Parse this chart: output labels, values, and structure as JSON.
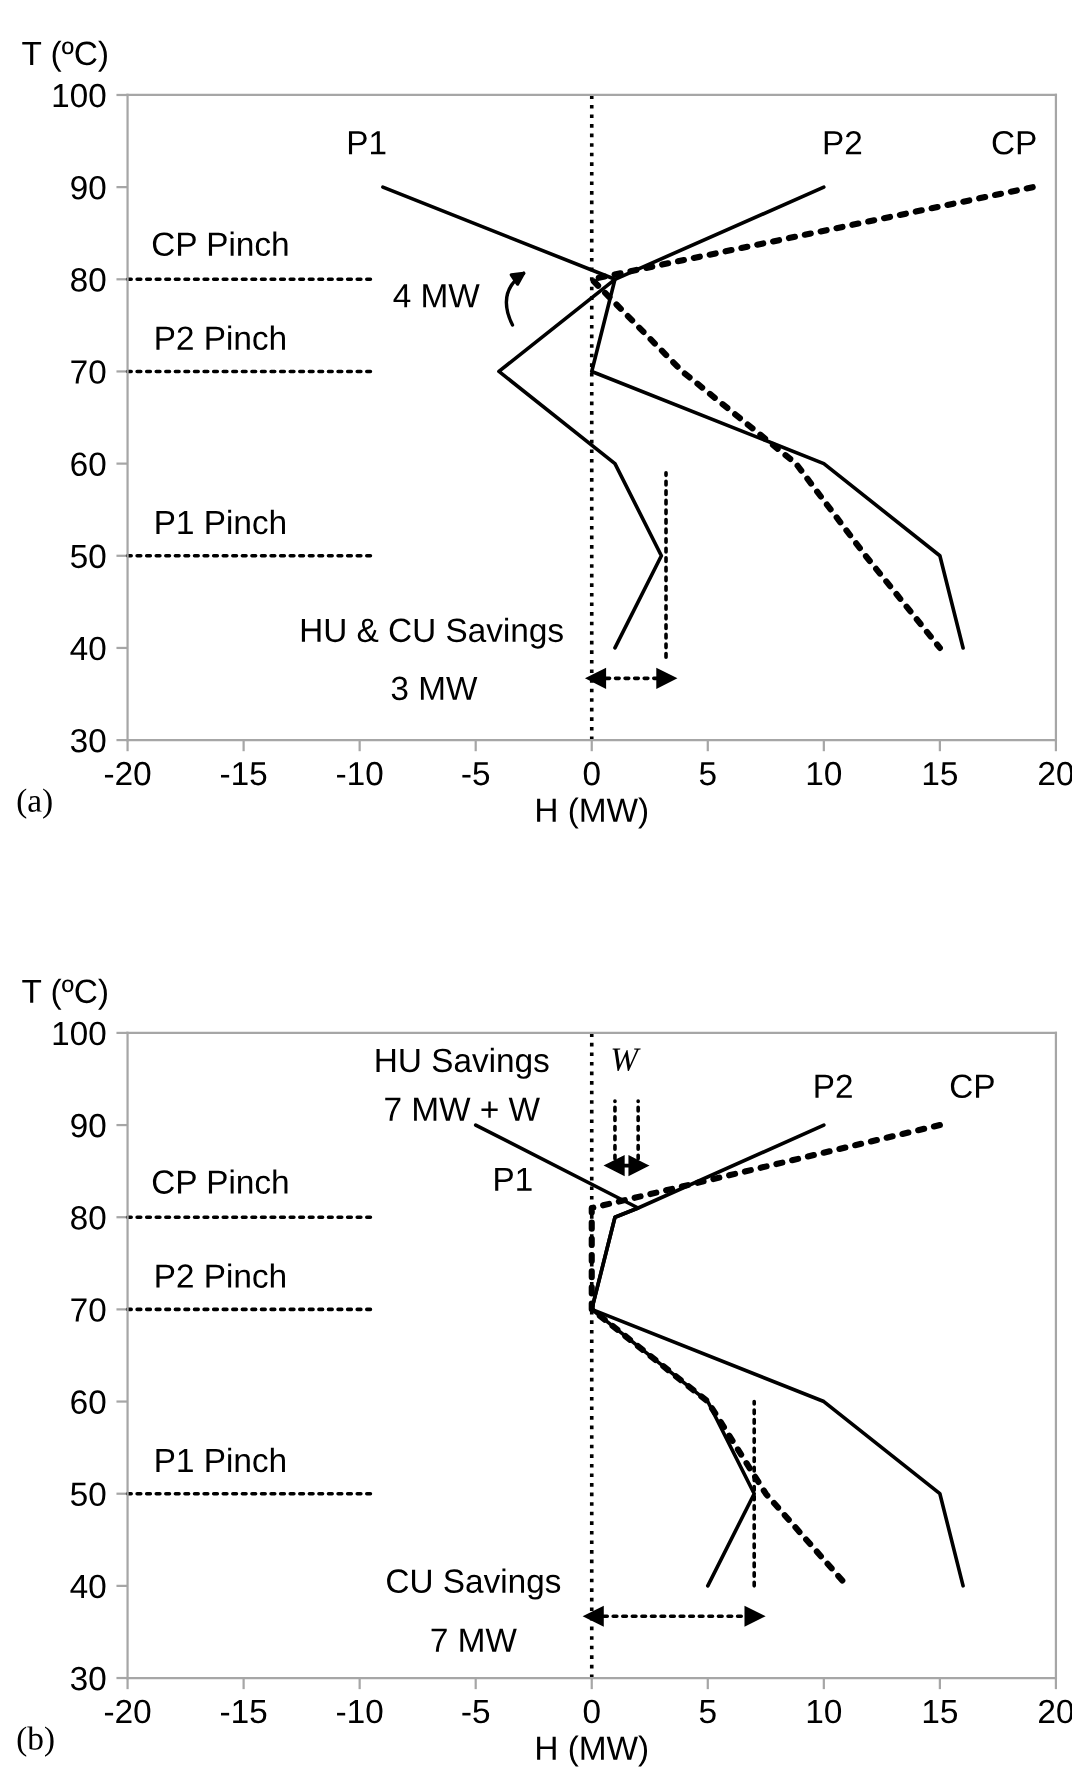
{
  "chart_data": [
    {
      "type": "line",
      "xlabel": "H (MW)",
      "ylabel": "T (ºC)",
      "xlim": [
        -20,
        20
      ],
      "ylim": [
        30,
        100
      ],
      "xticks": [
        -20,
        -15,
        -10,
        -5,
        0,
        5,
        10,
        15,
        20
      ],
      "yticks": [
        30,
        40,
        50,
        60,
        70,
        80,
        90,
        100
      ],
      "grid": false,
      "legend": false,
      "ref_lines": [
        {
          "axis": "x",
          "value": 0,
          "color": "#000000",
          "line_style": "dotted"
        }
      ],
      "series": [
        {
          "name": "P1",
          "color": "#000000",
          "line_style": "solid",
          "x": [
            -9,
            1,
            -4,
            1,
            3,
            1
          ],
          "values": [
            90,
            80,
            70,
            60,
            50,
            40
          ]
        },
        {
          "name": "P2",
          "color": "#000000",
          "line_style": "solid",
          "x": [
            10,
            1,
            0,
            10,
            15,
            16
          ],
          "values": [
            90,
            80,
            70,
            60,
            50,
            40
          ]
        },
        {
          "name": "CP",
          "color": "#000000",
          "line_style": "dotted",
          "x": [
            19,
            0,
            3.9,
            8.8,
            11.8,
            15
          ],
          "values": [
            90,
            80,
            70,
            60,
            50,
            40
          ]
        },
        {
          "color": "#000000",
          "line_style": "dotted",
          "x": [
            -20,
            -9.5
          ],
          "values": [
            80,
            80
          ]
        },
        {
          "color": "#000000",
          "line_style": "dotted",
          "x": [
            -20,
            -9.5
          ],
          "values": [
            70,
            70
          ]
        },
        {
          "color": "#000000",
          "line_style": "dotted",
          "x": [
            -20,
            -9.5
          ],
          "values": [
            50,
            50
          ]
        },
        {
          "color": "#000000",
          "line_style": "dotted",
          "x": [
            3.2,
            3.2
          ],
          "values": [
            39,
            59
          ]
        },
        {
          "color": "#000000",
          "line_style": "dotted",
          "marker": "triangle",
          "x": [
            0.2,
            3.2
          ],
          "values": [
            36.7,
            36.7
          ]
        }
      ],
      "annotations": [
        "CP Pinch",
        "P2 Pinch",
        "P1 Pinch",
        "4 MW",
        "HU & CU Savings",
        "3 MW",
        "(a)"
      ]
    },
    {
      "type": "line",
      "xlabel": "H (MW)",
      "ylabel": "T (ºC)",
      "xlim": [
        -20,
        20
      ],
      "ylim": [
        30,
        100
      ],
      "xticks": [
        -20,
        -15,
        -10,
        -5,
        0,
        5,
        10,
        15,
        20
      ],
      "yticks": [
        30,
        40,
        50,
        60,
        70,
        80,
        90,
        100
      ],
      "grid": false,
      "legend": false,
      "ref_lines": [
        {
          "axis": "x",
          "value": 0,
          "color": "#000000",
          "line_style": "dotted"
        }
      ],
      "series": [
        {
          "name": "P1",
          "color": "#000000",
          "line_style": "solid",
          "x": [
            -5,
            2,
            1,
            0,
            5,
            7,
            5
          ],
          "values": [
            90,
            81,
            80,
            70,
            60,
            50,
            40
          ]
        },
        {
          "name": "P2",
          "color": "#000000",
          "line_style": "solid",
          "x": [
            10,
            2,
            1,
            0,
            10,
            15,
            16
          ],
          "values": [
            90,
            81,
            80,
            70,
            60,
            50,
            40
          ]
        },
        {
          "name": "CP",
          "color": "#000000",
          "line_style": "dotted",
          "x": [
            15,
            0,
            0,
            0,
            5,
            7.5,
            11
          ],
          "values": [
            90,
            81,
            80,
            70,
            60,
            50,
            40
          ]
        },
        {
          "color": "#000000",
          "line_style": "dotted",
          "x": [
            -20,
            -9.3
          ],
          "values": [
            80,
            80
          ]
        },
        {
          "color": "#000000",
          "line_style": "dotted",
          "x": [
            -20,
            -9.3
          ],
          "values": [
            70,
            70
          ]
        },
        {
          "color": "#000000",
          "line_style": "dotted",
          "x": [
            -20,
            -9.3
          ],
          "values": [
            50,
            50
          ]
        },
        {
          "color": "#000000",
          "line_style": "dotted",
          "x": [
            7,
            7
          ],
          "values": [
            40,
            60
          ]
        },
        {
          "color": "#000000",
          "line_style": "dotted",
          "marker": "triangle",
          "x": [
            0.1,
            7
          ],
          "values": [
            36.7,
            36.7
          ]
        },
        {
          "color": "#000000",
          "line_style": "dotted",
          "x": [
            1,
            1
          ],
          "values": [
            85.3,
            92.6
          ]
        },
        {
          "color": "#000000",
          "line_style": "dotted",
          "x": [
            2,
            2
          ],
          "values": [
            85.3,
            92.6
          ]
        },
        {
          "color": "#000000",
          "line_style": "solid",
          "marker": "triangle",
          "x": [
            1,
            2
          ],
          "values": [
            85.6,
            85.6
          ]
        }
      ],
      "annotations": [
        "CP Pinch",
        "P2 Pinch",
        "P1 Pinch",
        "HU Savings",
        "7 MW + W",
        "W",
        "CU Savings",
        "7 MW",
        "(b)"
      ]
    }
  ]
}
